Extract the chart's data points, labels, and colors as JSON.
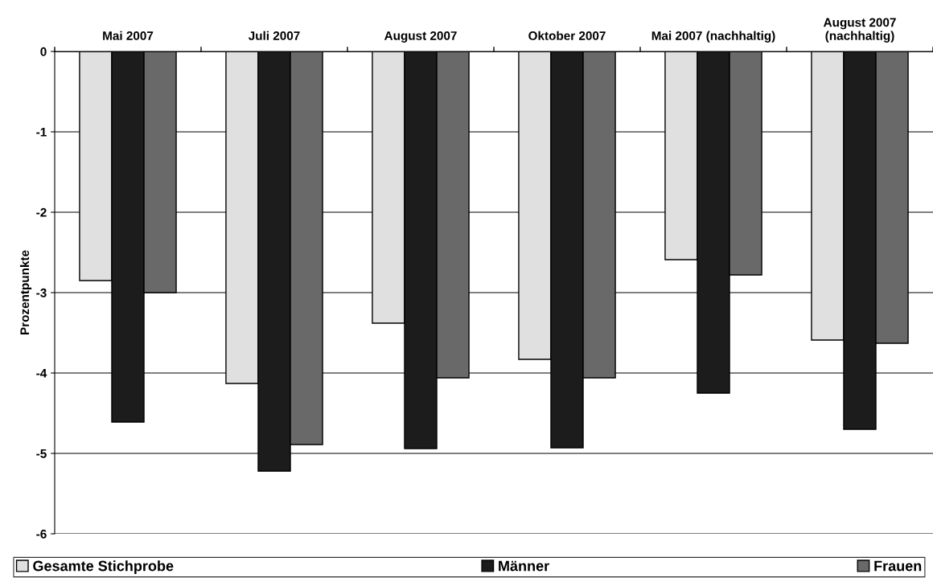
{
  "chart_data": {
    "type": "bar",
    "ylabel": "Prozentpunkte",
    "categories": [
      "Mai 2007",
      "Juli 2007",
      "August 2007",
      "Oktober 2007",
      "Mai 2007 (nachhaltig)",
      "August 2007\n(nachhaltig)"
    ],
    "series": [
      {
        "name": "Gesamte Stichprobe",
        "color": "#e0e0e0",
        "values": [
          -2.85,
          -4.13,
          -3.38,
          -3.83,
          -2.59,
          -3.59
        ]
      },
      {
        "name": "Männer",
        "color": "#1c1c1c",
        "values": [
          -4.61,
          -5.22,
          -4.94,
          -4.93,
          -4.25,
          -4.7
        ]
      },
      {
        "name": "Frauen",
        "color": "#696969",
        "values": [
          -3.0,
          -4.89,
          -4.06,
          -4.06,
          -2.78,
          -3.63
        ]
      }
    ],
    "ylim": [
      -6,
      0
    ],
    "yticks": [
      -6,
      -5,
      -4,
      -3,
      -2,
      -1,
      0
    ],
    "grid": "y",
    "legend": "bottom"
  }
}
